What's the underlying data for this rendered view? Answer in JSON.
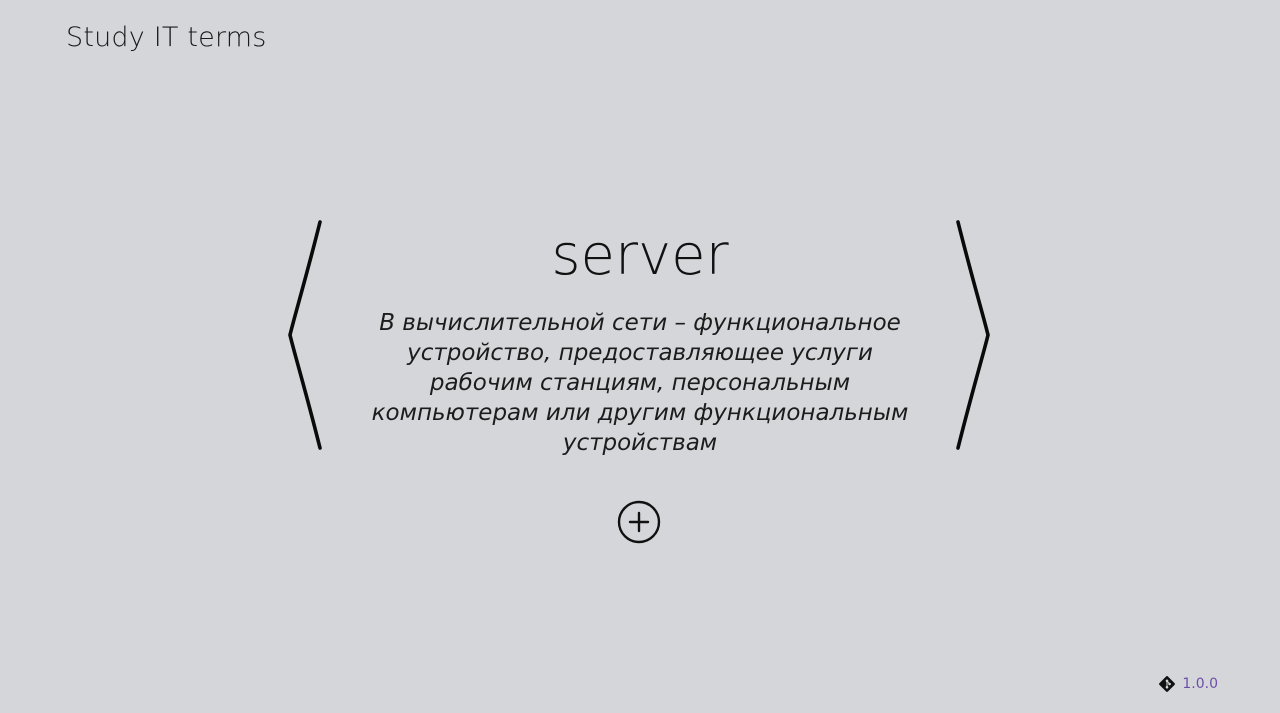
{
  "header": {
    "title": "Study IT terms"
  },
  "card": {
    "term": "server",
    "definition": "В вычислительной сети –  функциональное устройство, предоставляющее услуги рабочим станциям, персональным компьютерам или другим функциональным устройствам"
  },
  "navigation": {
    "prev_icon": "chevron-left-icon",
    "next_icon": "chevron-right-icon"
  },
  "actions": {
    "add_icon": "plus-circle-icon"
  },
  "footer": {
    "version": "1.0.0",
    "version_icon": "git-icon",
    "version_color": "#6d4fa8"
  }
}
